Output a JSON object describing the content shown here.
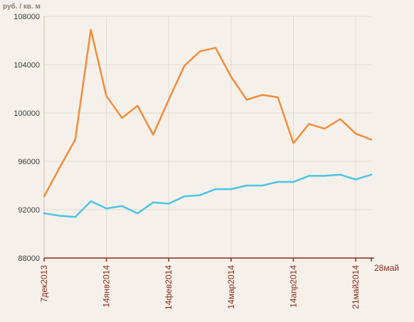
{
  "chart_data": {
    "type": "line",
    "title": "",
    "ylabel": "руб. / кв. м",
    "xlabel": "",
    "ylim": [
      88000,
      108000
    ],
    "yticks": [
      88000,
      92000,
      96000,
      100000,
      104000,
      108000
    ],
    "xticks": [
      {
        "index": 0,
        "label": "7дек2013"
      },
      {
        "index": 4,
        "label": "14янв2014"
      },
      {
        "index": 8,
        "label": "14фев2014"
      },
      {
        "index": 12,
        "label": "14мар2014"
      },
      {
        "index": 16,
        "label": "14апр2014"
      },
      {
        "index": 20,
        "label": "21май2014"
      },
      {
        "index": 21,
        "label": "28май"
      }
    ],
    "grid": true,
    "series": [
      {
        "color": "#f28c3c",
        "values": [
          93100,
          95500,
          97800,
          106900,
          101400,
          99600,
          100600,
          98200,
          101100,
          103900,
          105100,
          105400,
          103000,
          101100,
          101500,
          101300,
          97500,
          99100,
          98700,
          99500,
          98300,
          97800
        ]
      },
      {
        "color": "#4cc3e6",
        "values": [
          91700,
          91500,
          91400,
          92700,
          92100,
          92300,
          91700,
          92600,
          92500,
          93100,
          93200,
          93700,
          93700,
          94000,
          94000,
          94300,
          94300,
          94800,
          94800,
          94900,
          94500,
          94900
        ]
      }
    ]
  }
}
